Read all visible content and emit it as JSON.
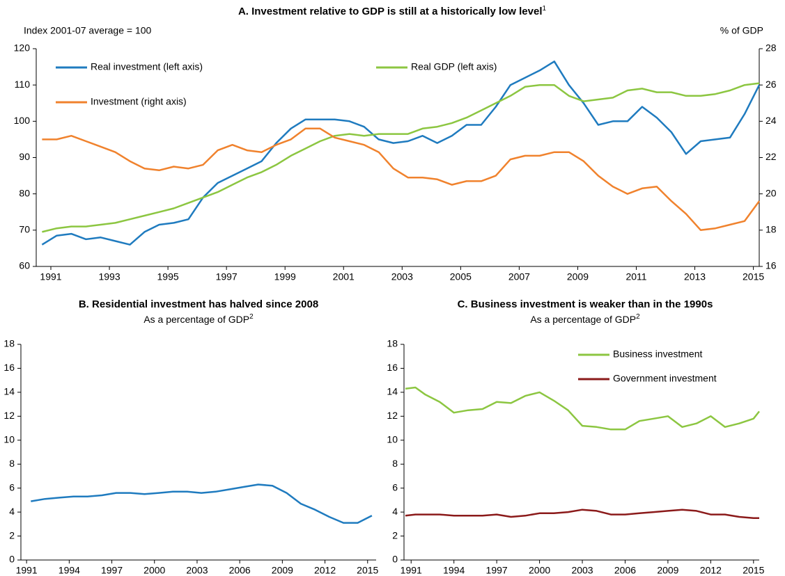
{
  "chart_data": [
    {
      "type": "line",
      "title": "A. Investment relative to GDP is still at a historically low level",
      "title_note": "1",
      "y_label": "Index 2001-07 average = 100",
      "y2_label": "% of GDP",
      "x": [
        1990.7,
        1991.2,
        1991.7,
        1992.2,
        1992.7,
        1993.2,
        1993.7,
        1994.2,
        1994.7,
        1995.2,
        1995.7,
        1996.2,
        1996.7,
        1997.2,
        1997.7,
        1998.2,
        1998.7,
        1999.2,
        1999.7,
        2000.2,
        2000.7,
        2001.2,
        2001.7,
        2002.2,
        2002.7,
        2003.2,
        2003.7,
        2004.2,
        2004.7,
        2005.2,
        2005.7,
        2006.2,
        2006.7,
        2007.2,
        2007.7,
        2008.2,
        2008.7,
        2009.2,
        2009.7,
        2010.2,
        2010.7,
        2011.2,
        2011.7,
        2012.2,
        2012.7,
        2013.2,
        2013.7,
        2014.2,
        2014.7,
        2015.2
      ],
      "xlim": [
        1990.5,
        2015.2
      ],
      "xticks": [
        1991,
        1993,
        1995,
        1997,
        1999,
        2001,
        2003,
        2005,
        2007,
        2009,
        2011,
        2013,
        2015
      ],
      "ylim": [
        60,
        120
      ],
      "yticks": [
        60,
        70,
        80,
        90,
        100,
        110,
        120
      ],
      "y2lim": [
        16,
        28
      ],
      "y2ticks": [
        16,
        18,
        20,
        22,
        24,
        26,
        28
      ],
      "series": [
        {
          "name": "Real investment (left axis)",
          "color": "#1f7bbf",
          "values": [
            66,
            68.5,
            69,
            67.5,
            68,
            67,
            66,
            69.5,
            71.5,
            72,
            73,
            79,
            83,
            85,
            87,
            89,
            94,
            98,
            100.5,
            100.5,
            100.5,
            100,
            98.5,
            95,
            94,
            94.5,
            96,
            94,
            96,
            99,
            99,
            104,
            110,
            112,
            114,
            116.5,
            110,
            105,
            99,
            100,
            100,
            104,
            101,
            97,
            91,
            94.5,
            95,
            95.5,
            102,
            110
          ]
        },
        {
          "name": "Real GDP (left axis)",
          "color": "#8cc641",
          "values": [
            69.5,
            70.5,
            71,
            71,
            71.5,
            72,
            73,
            74,
            75,
            76,
            77.5,
            79,
            80.5,
            82.5,
            84.5,
            86,
            88,
            90.5,
            92.5,
            94.5,
            96,
            96.5,
            96,
            96.5,
            96.5,
            96.5,
            98,
            98.5,
            99.5,
            101,
            103,
            105,
            107,
            109.5,
            110,
            110,
            107,
            105.5,
            106,
            106.5,
            108.5,
            109,
            108,
            108,
            107,
            107,
            107.5,
            108.5,
            110,
            110.5
          ]
        },
        {
          "name": "Investment (right axis)",
          "color": "#f0822d",
          "axis": "y2",
          "values": [
            23.0,
            23.0,
            23.2,
            22.9,
            22.6,
            22.3,
            21.8,
            21.4,
            21.3,
            21.5,
            21.4,
            21.6,
            22.4,
            22.7,
            22.4,
            22.3,
            22.7,
            23.0,
            23.6,
            23.6,
            23.1,
            22.9,
            22.7,
            22.3,
            21.4,
            20.9,
            20.9,
            20.8,
            20.5,
            20.7,
            20.7,
            21.0,
            21.9,
            22.1,
            22.1,
            22.3,
            22.3,
            21.8,
            21.0,
            20.4,
            20.0,
            20.3,
            20.4,
            19.6,
            18.9,
            18.0,
            18.1,
            18.3,
            18.5,
            19.6
          ]
        }
      ]
    },
    {
      "type": "line",
      "title": "B. Residential investment has halved since 2008",
      "subtitle": "As a percentage of GDP",
      "subtitle_note": "2",
      "x": [
        1991.3,
        1992.3,
        1993.3,
        1994.3,
        1995.3,
        1996.3,
        1997.3,
        1998.3,
        1999.3,
        2000.3,
        2001.3,
        2002.3,
        2003.3,
        2004.3,
        2005.3,
        2006.3,
        2007.3,
        2008.3,
        2009.3,
        2010.3,
        2011.3,
        2012.3,
        2013.3,
        2014.3,
        2015.3
      ],
      "xlim": [
        1990.6,
        2015.6
      ],
      "xticks": [
        1991,
        1994,
        1997,
        2000,
        2003,
        2006,
        2009,
        2012,
        2015
      ],
      "ylim": [
        0,
        18
      ],
      "yticks": [
        0,
        2,
        4,
        6,
        8,
        10,
        12,
        14,
        16,
        18
      ],
      "series": [
        {
          "color": "#1f7bbf",
          "values": [
            4.9,
            5.1,
            5.2,
            5.3,
            5.3,
            5.4,
            5.6,
            5.6,
            5.5,
            5.6,
            5.7,
            5.7,
            5.6,
            5.7,
            5.9,
            6.1,
            6.3,
            6.2,
            5.6,
            4.7,
            4.2,
            3.6,
            3.1,
            3.1,
            3.7
          ]
        }
      ]
    },
    {
      "type": "line",
      "title": "C. Business investment is weaker than in the 1990s",
      "subtitle": "As a percentage of GDP",
      "subtitle_note": "2",
      "x": [
        1990.6,
        1991.3,
        1992,
        1993,
        1994,
        1995,
        1996,
        1997,
        1998,
        1999,
        2000,
        2001,
        2002,
        2003,
        2004,
        2005,
        2006,
        2007,
        2008,
        2009,
        2010,
        2011,
        2012,
        2013,
        2014,
        2015,
        2015.4
      ],
      "xlim": [
        1990.5,
        2015.4
      ],
      "xticks": [
        1991,
        1994,
        1997,
        2000,
        2003,
        2006,
        2009,
        2012,
        2015
      ],
      "ylim": [
        0,
        18
      ],
      "yticks": [
        0,
        2,
        4,
        6,
        8,
        10,
        12,
        14,
        16,
        18
      ],
      "series": [
        {
          "name": "Business investment",
          "color": "#8cc641",
          "values": [
            14.3,
            14.4,
            13.8,
            13.2,
            12.3,
            12.5,
            12.6,
            13.2,
            13.1,
            13.7,
            14.0,
            13.3,
            12.5,
            11.2,
            11.1,
            10.9,
            10.9,
            11.6,
            11.8,
            12.0,
            11.1,
            11.4,
            12.0,
            11.1,
            11.4,
            11.8,
            12.4
          ]
        },
        {
          "name": "Government investment",
          "color": "#8b1a1a",
          "values": [
            3.7,
            3.8,
            3.8,
            3.8,
            3.7,
            3.7,
            3.7,
            3.8,
            3.6,
            3.7,
            3.9,
            3.9,
            4.0,
            4.2,
            4.1,
            3.8,
            3.8,
            3.9,
            4.0,
            4.1,
            4.2,
            4.1,
            3.8,
            3.8,
            3.6,
            3.5,
            3.5
          ]
        }
      ]
    }
  ]
}
